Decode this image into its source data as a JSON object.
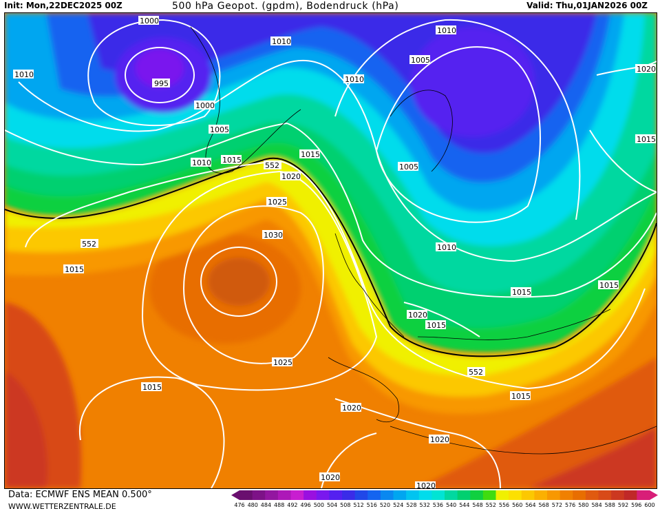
{
  "header": {
    "init": "Init: Mon,22DEC2025 00Z",
    "title": "500 hPa Geopot. (gpdm), Bodendruck (hPa)",
    "valid": "Valid: Thu,01JAN2026 00Z"
  },
  "footer": {
    "source": "Data: ECMWF ENS MEAN 0.500°",
    "site": "WWW.WETTERZENTRALE.DE"
  },
  "scale": {
    "ticks": [
      "476",
      "480",
      "484",
      "488",
      "492",
      "496",
      "500",
      "504",
      "508",
      "512",
      "516",
      "520",
      "524",
      "528",
      "532",
      "536",
      "540",
      "544",
      "548",
      "552",
      "556",
      "560",
      "564",
      "568",
      "572",
      "576",
      "580",
      "584",
      "588",
      "592",
      "596",
      "600"
    ],
    "colors": [
      "#6a0f6f",
      "#7d1287",
      "#9316a0",
      "#ad18b8",
      "#c81ed0",
      "#9a10e0",
      "#7a18ee",
      "#5420f0",
      "#3a2ce8",
      "#2048e8",
      "#1464f0",
      "#0a88f0",
      "#00a6f0",
      "#00c4f0",
      "#00dcec",
      "#00e4d4",
      "#00d8a0",
      "#00d070",
      "#10d040",
      "#40dc10",
      "#f0f000",
      "#fce000",
      "#fcc800",
      "#fbb000",
      "#f89800",
      "#f08000",
      "#e86e00",
      "#e05a10",
      "#d84a18",
      "#cc3820",
      "#c02828",
      "#d81e78"
    ]
  },
  "map": {
    "isobars": [
      "1000",
      "995",
      "1010",
      "1000",
      "1005",
      "1010",
      "1015",
      "1010",
      "1005",
      "1010",
      "1020",
      "1010",
      "1015",
      "1005",
      "1020",
      "1025",
      "1030",
      "1015",
      "1015",
      "1010",
      "1015",
      "1020",
      "1015",
      "1025",
      "1015",
      "552",
      "552",
      "552",
      "1020",
      "1020",
      "1020",
      "1015",
      "1020"
    ]
  }
}
